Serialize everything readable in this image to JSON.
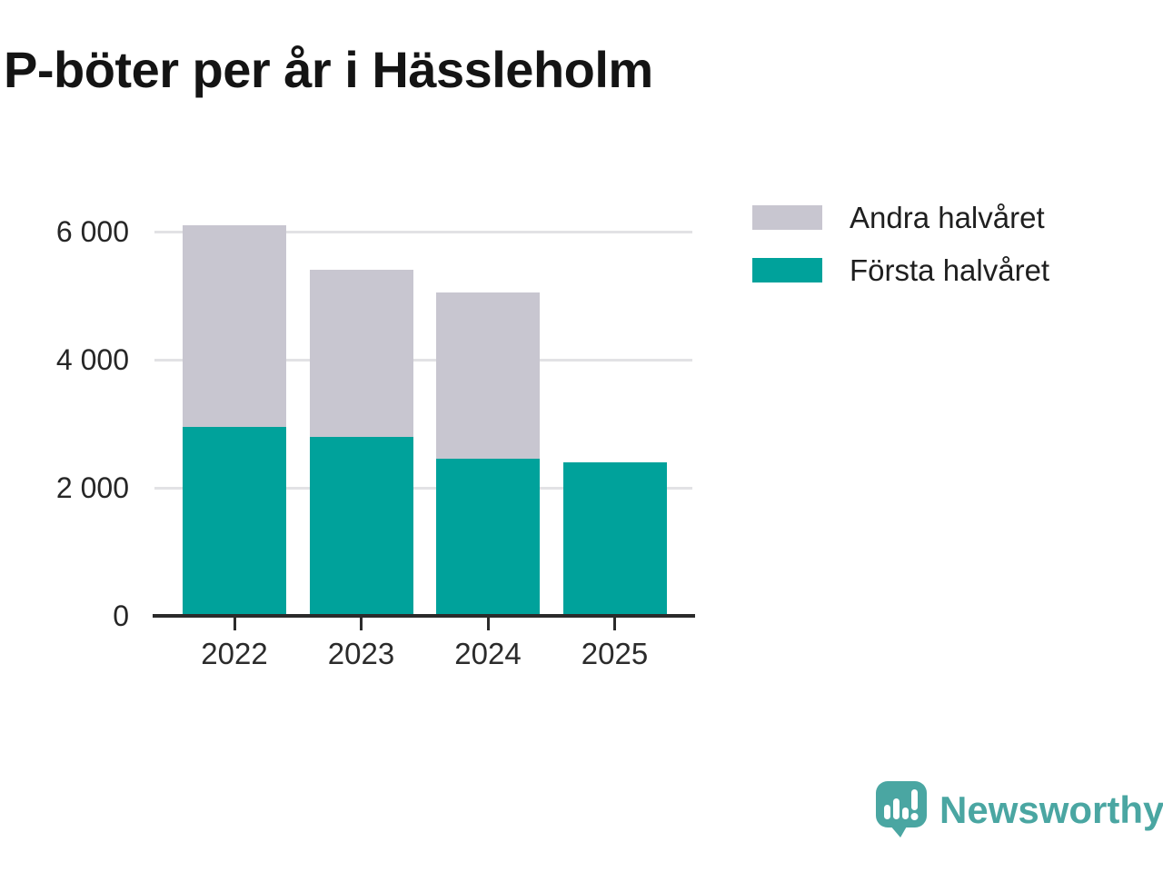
{
  "title": "P-böter per år i Hässleholm",
  "legend": {
    "items": [
      {
        "label": "Andra halvåret",
        "color": "#c8c6d0"
      },
      {
        "label": "Första halvåret",
        "color": "#00a29b"
      }
    ]
  },
  "chart_data": {
    "type": "bar",
    "stacked": true,
    "title": "P-böter per år i Hässleholm",
    "categories": [
      "2022",
      "2023",
      "2024",
      "2025"
    ],
    "series": [
      {
        "name": "Första halvåret",
        "color": "#00a29b",
        "values": [
          2950,
          2800,
          2450,
          2400
        ]
      },
      {
        "name": "Andra halvåret",
        "color": "#c8c6d0",
        "values": [
          3150,
          2600,
          2600,
          0
        ]
      }
    ],
    "totals": [
      6100,
      5400,
      5050,
      2400
    ],
    "xlabel": "",
    "ylabel": "",
    "ylim": [
      0,
      6200
    ],
    "yticks": [
      0,
      2000,
      4000,
      6000
    ],
    "ytick_labels": [
      "0",
      "2 000",
      "4 000",
      "6 000"
    ],
    "grid": true,
    "legend_position": "top-right"
  },
  "branding": {
    "logo_text": "Newsworthy",
    "logo_color": "#4aa6a2"
  }
}
